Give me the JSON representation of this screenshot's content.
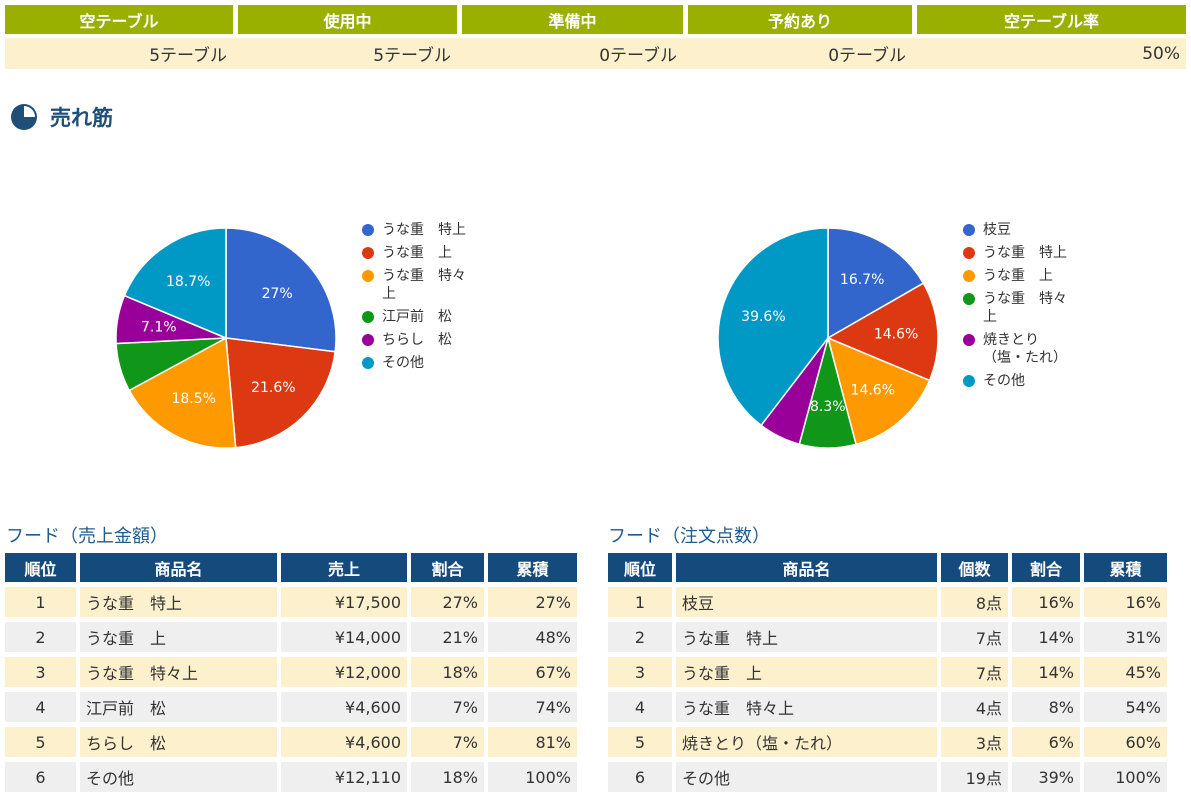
{
  "status": {
    "headers": [
      "空テーブル",
      "使用中",
      "準備中",
      "予約あり",
      "空テーブル率"
    ],
    "values": [
      "5テーブル",
      "5テーブル",
      "0テーブル",
      "0テーブル",
      "50%"
    ]
  },
  "section_title": "売れ筋",
  "chart_data": [
    {
      "type": "pie",
      "categories": [
        "うな重　特上",
        "うな重　上",
        "うな重　特々上",
        "江戸前　松",
        "ちらし　松",
        "その他"
      ],
      "values": [
        27,
        21.6,
        18.5,
        7.1,
        7.1,
        18.7
      ],
      "data_labels": [
        "27%",
        "21.6%",
        "18.5%",
        "",
        "7.1%",
        "18.7%"
      ],
      "colors": [
        "#3366cc",
        "#dc3912",
        "#ff9900",
        "#109618",
        "#990099",
        "#0099c6"
      ],
      "legend": "right"
    },
    {
      "type": "pie",
      "categories": [
        "枝豆",
        "うな重　特上",
        "うな重　上",
        "うな重　特々上",
        "焼きとり（塩・たれ）",
        "その他"
      ],
      "values": [
        16.7,
        14.6,
        14.6,
        8.3,
        6.2,
        39.6
      ],
      "data_labels": [
        "16.7%",
        "14.6%",
        "14.6%",
        "8.3%",
        "",
        "39.6%"
      ],
      "colors": [
        "#3366cc",
        "#dc3912",
        "#ff9900",
        "#109618",
        "#990099",
        "#0099c6"
      ],
      "legend": "right"
    }
  ],
  "legend_left": [
    "うな重　特上",
    "うな重　上",
    "うな重　特々\n上",
    "江戸前　松",
    "ちらし　松",
    "その他"
  ],
  "legend_right": [
    "枝豆",
    "うな重　特上",
    "うな重　上",
    "うな重　特々\n上",
    "焼きとり\n（塩・たれ）",
    "その他"
  ],
  "sales_table": {
    "caption": "フード（売上金額）",
    "headers": [
      "順位",
      "商品名",
      "売上",
      "割合",
      "累積"
    ],
    "rows": [
      [
        "1",
        "うな重　特上",
        "¥17,500",
        "27%",
        "27%"
      ],
      [
        "2",
        "うな重　上",
        "¥14,000",
        "21%",
        "48%"
      ],
      [
        "3",
        "うな重　特々上",
        "¥12,000",
        "18%",
        "67%"
      ],
      [
        "4",
        "江戸前　松",
        "¥4,600",
        "7%",
        "74%"
      ],
      [
        "5",
        "ちらし　松",
        "¥4,600",
        "7%",
        "81%"
      ],
      [
        "6",
        "その他",
        "¥12,110",
        "18%",
        "100%"
      ]
    ]
  },
  "count_table": {
    "caption": "フード（注文点数）",
    "headers": [
      "順位",
      "商品名",
      "個数",
      "割合",
      "累積"
    ],
    "rows": [
      [
        "1",
        "枝豆",
        "8点",
        "16%",
        "16%"
      ],
      [
        "2",
        "うな重　特上",
        "7点",
        "14%",
        "31%"
      ],
      [
        "3",
        "うな重　上",
        "7点",
        "14%",
        "45%"
      ],
      [
        "4",
        "うな重　特々上",
        "4点",
        "8%",
        "54%"
      ],
      [
        "5",
        "焼きとり（塩・たれ）",
        "3点",
        "6%",
        "60%"
      ],
      [
        "6",
        "その他",
        "19点",
        "39%",
        "100%"
      ]
    ]
  }
}
